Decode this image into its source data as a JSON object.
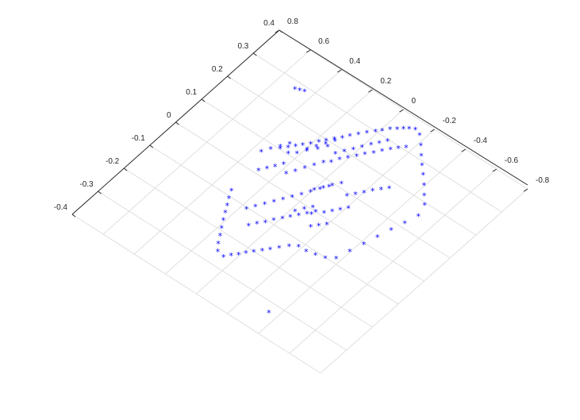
{
  "chart_data": {
    "type": "scatter",
    "projection": "3-D view, floor plane seen from above",
    "title": "",
    "xlabel": "",
    "ylabel": "",
    "marker": "*",
    "grid": true,
    "colors": {
      "marker": "#0000ff",
      "axes": "#262626",
      "grid": "#dfdfdf"
    },
    "x_axis": {
      "range": [
        -0.4,
        0.4
      ],
      "ticks": [
        "-0.4",
        "-0.3",
        "-0.2",
        "-0.1",
        "0",
        "0.1",
        "0.2",
        "0.3",
        "0.4"
      ]
    },
    "y_axis": {
      "range": [
        -0.8,
        0.8
      ],
      "ticks": [
        "0.8",
        "0.6",
        "0.4",
        "0.2",
        "0",
        "-0.2",
        "-0.4",
        "-0.6",
        "-0.8"
      ]
    },
    "series": [
      {
        "points": [
          [
            0.276,
            0.492
          ],
          [
            0.281,
            0.47
          ],
          [
            0.285,
            0.445
          ],
          [
            -0.013,
            -0.096
          ],
          [
            -0.331,
            -0.352
          ],
          [
            0.102,
            0.297
          ],
          [
            0.117,
            0.271
          ],
          [
            0.133,
            0.249
          ],
          [
            0.147,
            0.227
          ],
          [
            0.163,
            0.203
          ],
          [
            0.181,
            0.18
          ],
          [
            0.196,
            0.158
          ],
          [
            0.213,
            0.133
          ],
          [
            0.229,
            0.109
          ],
          [
            0.246,
            0.088
          ],
          [
            0.264,
            0.063
          ],
          [
            0.282,
            0.039
          ],
          [
            0.299,
            0.012
          ],
          [
            0.312,
            -0.01
          ],
          [
            0.328,
            -0.034
          ],
          [
            0.34,
            -0.06
          ],
          [
            0.351,
            -0.082
          ],
          [
            0.36,
            -0.104
          ],
          [
            0.368,
            -0.13
          ],
          [
            0.361,
            -0.169
          ],
          [
            0.337,
            -0.217
          ],
          [
            0.312,
            -0.262
          ],
          [
            0.288,
            -0.306
          ],
          [
            0.266,
            -0.35
          ],
          [
            0.242,
            -0.396
          ],
          [
            0.216,
            -0.441
          ],
          [
            0.192,
            -0.483
          ],
          [
            0.154,
            -0.506
          ],
          [
            0.114,
            -0.485
          ],
          [
            0.075,
            -0.463
          ],
          [
            0.035,
            -0.441
          ],
          [
            -0.005,
            -0.42
          ],
          [
            -0.046,
            -0.398
          ],
          [
            -0.086,
            -0.377
          ],
          [
            -0.102,
            -0.334
          ],
          [
            -0.11,
            -0.284
          ],
          [
            -0.116,
            -0.234
          ],
          [
            -0.117,
            -0.186
          ],
          [
            -0.131,
            -0.149
          ],
          [
            -0.151,
            -0.118
          ],
          [
            -0.169,
            -0.09
          ],
          [
            -0.185,
            -0.066
          ],
          [
            -0.202,
            -0.04
          ],
          [
            -0.218,
            -0.016
          ],
          [
            -0.233,
            0.006
          ],
          [
            -0.248,
            0.03
          ],
          [
            -0.264,
            0.052
          ],
          [
            -0.259,
            0.097
          ],
          [
            -0.238,
            0.129
          ],
          [
            -0.215,
            0.155
          ],
          [
            -0.194,
            0.181
          ],
          [
            -0.171,
            0.208
          ],
          [
            -0.149,
            0.232
          ],
          [
            -0.128,
            0.255
          ],
          [
            -0.107,
            0.279
          ],
          [
            -0.084,
            0.301
          ],
          [
            -0.144,
            0.091
          ],
          [
            -0.125,
            0.068
          ],
          [
            -0.109,
            0.041
          ],
          [
            -0.089,
            0.02
          ],
          [
            -0.071,
            -0.006
          ],
          [
            -0.055,
            -0.03
          ],
          [
            -0.037,
            -0.054
          ],
          [
            -0.019,
            -0.078
          ],
          [
            -0.001,
            -0.103
          ],
          [
            -0.105,
            0.169
          ],
          [
            -0.085,
            0.145
          ],
          [
            -0.064,
            0.12
          ],
          [
            -0.043,
            0.096
          ],
          [
            -0.022,
            0.072
          ],
          [
            -0.001,
            0.048
          ],
          [
            0.02,
            0.023
          ],
          [
            0.041,
            0.0
          ],
          [
            0.063,
            -0.024
          ],
          [
            0.084,
            -0.048
          ],
          [
            0.011,
            0.285
          ],
          [
            0.03,
            0.263
          ],
          [
            0.048,
            0.24
          ],
          [
            0.068,
            0.218
          ],
          [
            0.063,
            0.354
          ],
          [
            0.085,
            0.33
          ],
          [
            0.107,
            0.305
          ],
          [
            0.129,
            0.281
          ],
          [
            0.143,
            0.192
          ],
          [
            0.165,
            0.169
          ],
          [
            0.187,
            0.146
          ],
          [
            0.209,
            0.123
          ],
          [
            0.048,
            0.168
          ],
          [
            0.069,
            0.145
          ],
          [
            0.092,
            0.122
          ],
          [
            0.114,
            0.098
          ],
          [
            0.136,
            0.075
          ],
          [
            0.15,
            0.049
          ],
          [
            0.17,
            0.028
          ],
          [
            0.188,
            0.004
          ],
          [
            0.206,
            -0.022
          ],
          [
            0.224,
            -0.045
          ],
          [
            0.242,
            -0.072
          ],
          [
            0.26,
            -0.096
          ],
          [
            0.278,
            -0.12
          ],
          [
            0.293,
            -0.145
          ],
          [
            0.308,
            -0.171
          ],
          [
            0.178,
            0.068
          ],
          [
            0.198,
            0.044
          ],
          [
            0.218,
            0.02
          ],
          [
            0.238,
            -0.003
          ],
          [
            0.052,
            -0.006
          ],
          [
            0.072,
            -0.031
          ],
          [
            0.092,
            -0.055
          ],
          [
            0.112,
            -0.08
          ],
          [
            0.09,
            -0.153
          ],
          [
            0.108,
            -0.178
          ],
          [
            0.126,
            -0.203
          ],
          [
            0.144,
            -0.228
          ],
          [
            0.161,
            -0.254
          ],
          [
            0.178,
            -0.279
          ],
          [
            0.061,
            -0.211
          ],
          [
            0.044,
            -0.187
          ],
          [
            0.027,
            -0.163
          ],
          [
            0.01,
            -0.139
          ],
          [
            0.103,
            0.247
          ],
          [
            0.117,
            0.214
          ],
          [
            0.138,
            0.186
          ],
          [
            0.161,
            0.154
          ],
          [
            0.183,
            0.126
          ],
          [
            -0.047,
            -0.148
          ],
          [
            -0.031,
            -0.173
          ],
          [
            -0.015,
            -0.198
          ],
          [
            -0.033,
            -0.024
          ],
          [
            -0.012,
            -0.048
          ],
          [
            0.006,
            -0.073
          ],
          [
            0.259,
            -0.027
          ],
          [
            0.276,
            -0.051
          ],
          [
            0.294,
            -0.074
          ]
        ]
      }
    ]
  }
}
